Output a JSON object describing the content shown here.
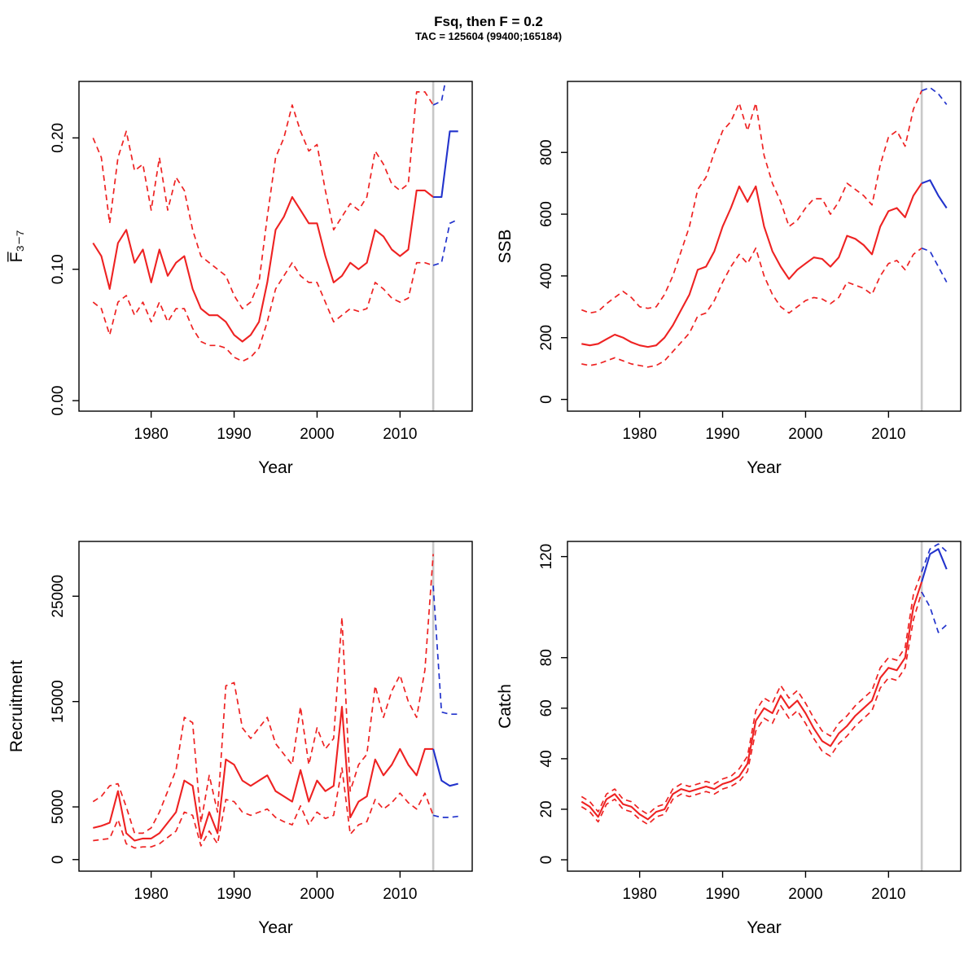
{
  "header": {
    "title": "Fsq, then F = 0.2",
    "subtitle": "TAC = 125604 (99400;165184)"
  },
  "colors": {
    "estimate": "#ee2222",
    "forecast": "#2233cc",
    "vline": "#c8c8c8",
    "axis": "#000000"
  },
  "chart_data": [
    {
      "type": "line",
      "name": "fbar",
      "ylabel": "F̅₃₋₇",
      "xlabel": "Year",
      "xlim": [
        1971.3,
        2018.7
      ],
      "ylim": [
        -0.008,
        0.243
      ],
      "xticks": [
        1980,
        1990,
        2000,
        2010
      ],
      "xtick_labels": [
        "1980",
        "1990",
        "2000",
        "2010"
      ],
      "yticks": [
        0,
        0.1,
        0.2
      ],
      "ytick_labels": [
        "0.00",
        "0.10",
        "0.20"
      ],
      "vline": 2014,
      "years": [
        1973,
        1974,
        1975,
        1976,
        1977,
        1978,
        1979,
        1980,
        1981,
        1982,
        1983,
        1984,
        1985,
        1986,
        1987,
        1988,
        1989,
        1990,
        1991,
        1992,
        1993,
        1994,
        1995,
        1996,
        1997,
        1998,
        1999,
        2000,
        2001,
        2002,
        2003,
        2004,
        2005,
        2006,
        2007,
        2008,
        2009,
        2010,
        2011,
        2012,
        2013,
        2014
      ],
      "median": [
        0.12,
        0.11,
        0.085,
        0.12,
        0.13,
        0.105,
        0.115,
        0.09,
        0.115,
        0.095,
        0.105,
        0.11,
        0.085,
        0.07,
        0.065,
        0.065,
        0.06,
        0.05,
        0.045,
        0.05,
        0.06,
        0.09,
        0.13,
        0.14,
        0.155,
        0.145,
        0.135,
        0.135,
        0.11,
        0.09,
        0.095,
        0.105,
        0.1,
        0.105,
        0.13,
        0.125,
        0.115,
        0.11,
        0.115,
        0.16,
        0.16,
        0.155
      ],
      "upper": [
        0.2,
        0.185,
        0.135,
        0.185,
        0.205,
        0.175,
        0.18,
        0.145,
        0.185,
        0.145,
        0.17,
        0.16,
        0.13,
        0.11,
        0.105,
        0.1,
        0.095,
        0.08,
        0.07,
        0.075,
        0.09,
        0.14,
        0.185,
        0.2,
        0.225,
        0.205,
        0.19,
        0.195,
        0.16,
        0.13,
        0.14,
        0.15,
        0.145,
        0.155,
        0.19,
        0.18,
        0.165,
        0.16,
        0.165,
        0.235,
        0.235,
        0.225
      ],
      "lower": [
        0.075,
        0.07,
        0.05,
        0.075,
        0.08,
        0.065,
        0.075,
        0.06,
        0.075,
        0.06,
        0.07,
        0.07,
        0.055,
        0.045,
        0.042,
        0.042,
        0.04,
        0.033,
        0.03,
        0.033,
        0.04,
        0.06,
        0.085,
        0.095,
        0.105,
        0.095,
        0.09,
        0.09,
        0.075,
        0.06,
        0.065,
        0.07,
        0.068,
        0.07,
        0.09,
        0.085,
        0.078,
        0.075,
        0.078,
        0.105,
        0.105,
        0.103
      ],
      "forecast_years": [
        2014,
        2015,
        2016,
        2017
      ],
      "forecast_median": [
        0.155,
        0.155,
        0.205,
        0.205
      ],
      "forecast_upper": [
        0.225,
        0.228,
        0.26,
        0.255
      ],
      "forecast_lower": [
        0.103,
        0.105,
        0.135,
        0.138
      ]
    },
    {
      "type": "line",
      "name": "ssb",
      "ylabel": "SSB",
      "xlabel": "Year",
      "xlim": [
        1971.3,
        2018.7
      ],
      "ylim": [
        -38,
        1030
      ],
      "xticks": [
        1980,
        1990,
        2000,
        2010
      ],
      "xtick_labels": [
        "1980",
        "1990",
        "2000",
        "2010"
      ],
      "yticks": [
        0,
        200,
        400,
        600,
        800
      ],
      "ytick_labels": [
        "0",
        "200",
        "400",
        "600",
        "800"
      ],
      "vline": 2014,
      "years": [
        1973,
        1974,
        1975,
        1976,
        1977,
        1978,
        1979,
        1980,
        1981,
        1982,
        1983,
        1984,
        1985,
        1986,
        1987,
        1988,
        1989,
        1990,
        1991,
        1992,
        1993,
        1994,
        1995,
        1996,
        1997,
        1998,
        1999,
        2000,
        2001,
        2002,
        2003,
        2004,
        2005,
        2006,
        2007,
        2008,
        2009,
        2010,
        2011,
        2012,
        2013,
        2014
      ],
      "median": [
        180,
        175,
        180,
        195,
        210,
        200,
        185,
        175,
        170,
        175,
        200,
        240,
        290,
        340,
        420,
        430,
        480,
        560,
        620,
        690,
        640,
        690,
        560,
        480,
        430,
        390,
        420,
        440,
        460,
        455,
        430,
        460,
        530,
        520,
        500,
        470,
        560,
        610,
        620,
        590,
        660,
        700
      ],
      "upper": [
        290,
        280,
        285,
        310,
        330,
        350,
        330,
        300,
        295,
        300,
        340,
        400,
        480,
        560,
        680,
        720,
        800,
        870,
        900,
        960,
        870,
        960,
        790,
        700,
        640,
        560,
        580,
        620,
        650,
        650,
        600,
        640,
        700,
        680,
        660,
        630,
        760,
        850,
        870,
        820,
        940,
        1000
      ],
      "lower": [
        115,
        110,
        115,
        125,
        135,
        125,
        115,
        110,
        105,
        110,
        125,
        155,
        185,
        215,
        270,
        280,
        320,
        380,
        430,
        470,
        440,
        490,
        400,
        340,
        300,
        280,
        300,
        320,
        330,
        325,
        310,
        330,
        380,
        370,
        360,
        340,
        400,
        440,
        450,
        420,
        470,
        490
      ],
      "forecast_years": [
        2014,
        2015,
        2016,
        2017
      ],
      "forecast_median": [
        700,
        710,
        660,
        620
      ],
      "forecast_upper": [
        1000,
        1010,
        990,
        955
      ],
      "forecast_lower": [
        490,
        480,
        430,
        380
      ]
    },
    {
      "type": "line",
      "name": "recruitment",
      "ylabel": "Recruitment",
      "xlabel": "Year",
      "xlim": [
        1971.3,
        2018.7
      ],
      "ylim": [
        -1100,
        30200
      ],
      "xticks": [
        1980,
        1990,
        2000,
        2010
      ],
      "xtick_labels": [
        "1980",
        "1990",
        "2000",
        "2010"
      ],
      "yticks": [
        0,
        5000,
        15000,
        25000
      ],
      "ytick_labels": [
        "0",
        "5000",
        "15000",
        "25000"
      ],
      "vline": 2014,
      "years": [
        1973,
        1974,
        1975,
        1976,
        1977,
        1978,
        1979,
        1980,
        1981,
        1982,
        1983,
        1984,
        1985,
        1986,
        1987,
        1988,
        1989,
        1990,
        1991,
        1992,
        1993,
        1994,
        1995,
        1996,
        1997,
        1998,
        1999,
        2000,
        2001,
        2002,
        2003,
        2004,
        2005,
        2006,
        2007,
        2008,
        2009,
        2010,
        2011,
        2012,
        2013,
        2014
      ],
      "median": [
        3000,
        3200,
        3500,
        6500,
        2500,
        1800,
        2000,
        2000,
        2500,
        3500,
        4500,
        7500,
        7000,
        2000,
        4500,
        2500,
        9500,
        9000,
        7500,
        7000,
        7500,
        8000,
        6500,
        6000,
        5500,
        8500,
        5500,
        7500,
        6500,
        7000,
        14500,
        4000,
        5500,
        6000,
        9500,
        8000,
        9000,
        10500,
        9000,
        8000,
        10500,
        10500
      ],
      "upper": [
        5500,
        6000,
        7000,
        7200,
        5000,
        2500,
        2500,
        3000,
        4500,
        6500,
        8500,
        13500,
        13000,
        3500,
        8000,
        4500,
        16500,
        16800,
        12500,
        11500,
        12500,
        13500,
        11000,
        10000,
        9000,
        14500,
        9000,
        12500,
        10500,
        11500,
        23000,
        6500,
        9000,
        10000,
        16500,
        13500,
        16000,
        17500,
        15000,
        13500,
        18000,
        29000
      ],
      "lower": [
        1800,
        1900,
        2000,
        3800,
        1500,
        1100,
        1200,
        1200,
        1500,
        2100,
        2700,
        4500,
        4200,
        1300,
        2700,
        1500,
        5700,
        5500,
        4500,
        4200,
        4500,
        4800,
        4000,
        3600,
        3300,
        5100,
        3300,
        4500,
        3900,
        4200,
        8700,
        2400,
        3300,
        3600,
        5700,
        4800,
        5400,
        6300,
        5400,
        4800,
        6300,
        4200
      ],
      "forecast_years": [
        2014,
        2015,
        2016,
        2017
      ],
      "forecast_median": [
        10500,
        7500,
        7000,
        7200
      ],
      "forecast_upper": [
        26000,
        14000,
        13800,
        13800
      ],
      "forecast_lower": [
        4200,
        4000,
        4000,
        4100
      ]
    },
    {
      "type": "line",
      "name": "catch",
      "ylabel": "Catch",
      "xlabel": "Year",
      "xlim": [
        1971.3,
        2018.7
      ],
      "ylim": [
        -4.5,
        126
      ],
      "xticks": [
        1980,
        1990,
        2000,
        2010
      ],
      "xtick_labels": [
        "1980",
        "1990",
        "2000",
        "2010"
      ],
      "yticks": [
        0,
        20,
        40,
        60,
        80,
        120
      ],
      "ytick_labels": [
        "0",
        "20",
        "40",
        "60",
        "80",
        "120"
      ],
      "vline": 2014,
      "years": [
        1973,
        1974,
        1975,
        1976,
        1977,
        1978,
        1979,
        1980,
        1981,
        1982,
        1983,
        1984,
        1985,
        1986,
        1987,
        1988,
        1989,
        1990,
        1991,
        1992,
        1993,
        1994,
        1995,
        1996,
        1997,
        1998,
        1999,
        2000,
        2001,
        2002,
        2003,
        2004,
        2005,
        2006,
        2007,
        2008,
        2009,
        2010,
        2011,
        2012,
        2013,
        2014
      ],
      "median": [
        23,
        21,
        17,
        24,
        26,
        22,
        21,
        18,
        16,
        19,
        20,
        26,
        28,
        27,
        28,
        29,
        28,
        30,
        31,
        33,
        38,
        55,
        60,
        58,
        65,
        60,
        63,
        58,
        52,
        47,
        45,
        50,
        53,
        57,
        60,
        63,
        72,
        76,
        75,
        80,
        100,
        110
      ],
      "upper": [
        25,
        23,
        19,
        26,
        28,
        24,
        23,
        20,
        18,
        21,
        22,
        28,
        30,
        29,
        30,
        31,
        30,
        32,
        33,
        36,
        41,
        59,
        64,
        62,
        69,
        64,
        67,
        62,
        56,
        51,
        49,
        54,
        57,
        61,
        64,
        67,
        76,
        80,
        79,
        84,
        105,
        114
      ],
      "lower": [
        21,
        19,
        15,
        22,
        24,
        20,
        19,
        16,
        14,
        17,
        18,
        24,
        26,
        25,
        26,
        27,
        26,
        28,
        29,
        31,
        35,
        51,
        56,
        54,
        61,
        56,
        59,
        54,
        48,
        43,
        41,
        46,
        49,
        53,
        56,
        59,
        68,
        72,
        71,
        76,
        95,
        106
      ],
      "forecast_years": [
        2014,
        2015,
        2016,
        2017
      ],
      "forecast_median": [
        110,
        121,
        123,
        115
      ],
      "forecast_upper": [
        114,
        123,
        125,
        122
      ],
      "forecast_lower": [
        106,
        100,
        90,
        93
      ]
    }
  ]
}
